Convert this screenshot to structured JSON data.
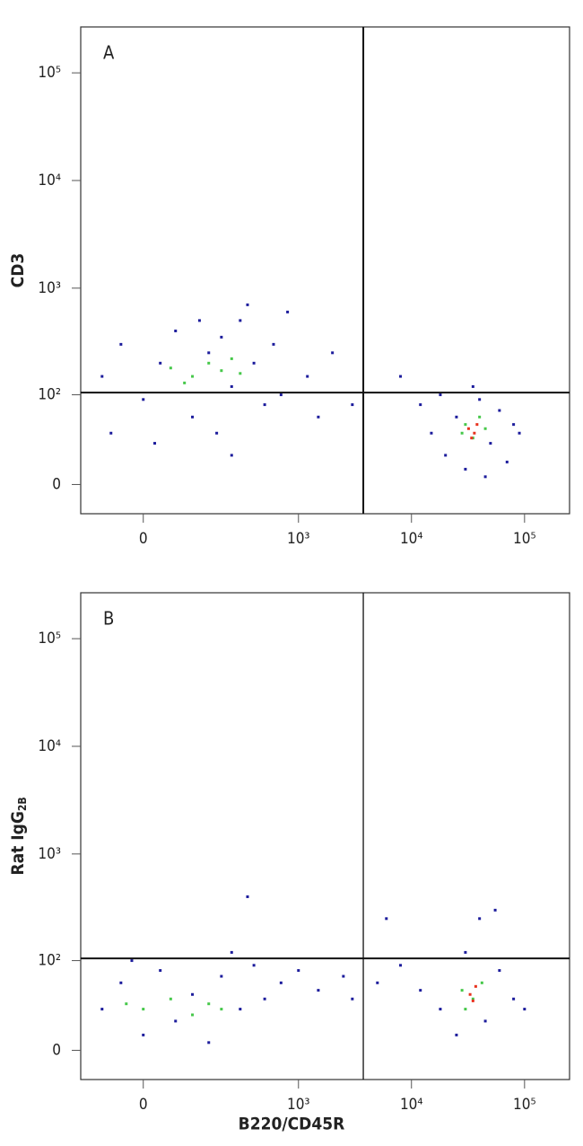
{
  "chart_data": [
    {
      "type": "scatter",
      "panel_label": "A",
      "ylabel": "CD3",
      "xscale": "biexponential",
      "yscale": "biexponential",
      "xlim": [
        -140,
        250000
      ],
      "ylim": [
        -20,
        267000
      ],
      "xticks": [
        0,
        {
          "value": 1000,
          "label": "10³"
        },
        {
          "value": 10000,
          "label": "10⁴"
        },
        {
          "value": 100000,
          "label": "10⁵"
        }
      ],
      "yticks": [
        0,
        {
          "value": 100,
          "label": "10²"
        },
        {
          "value": 1000,
          "label": "10³"
        },
        {
          "value": 10000,
          "label": "10⁴"
        },
        {
          "value": 100000,
          "label": "10⁵"
        }
      ],
      "quadrant": {
        "x": 3750,
        "y": 105
      },
      "series": [
        {
          "color": "#1c1c9c",
          "x": [
            -80,
            -40,
            0,
            30,
            60,
            100,
            150,
            200,
            250,
            300,
            400,
            500,
            600,
            800,
            1200,
            2000,
            3000,
            -60,
            20,
            120,
            180,
            350,
            700,
            1500,
            8000,
            12000,
            15000,
            20000,
            25000,
            30000,
            40000,
            50000,
            60000,
            70000,
            80000,
            18000,
            45000,
            35000,
            90000,
            250
          ],
          "values": [
            150,
            300,
            90,
            200,
            400,
            60,
            250,
            350,
            120,
            500,
            200,
            80,
            300,
            600,
            150,
            250,
            80,
            40,
            30,
            500,
            40,
            700,
            100,
            60,
            150,
            80,
            40,
            20,
            60,
            10,
            90,
            30,
            70,
            15,
            50,
            100,
            5,
            120,
            40,
            20
          ]
        },
        {
          "color": "#46c84a",
          "x": [
            50,
            100,
            150,
            200,
            250,
            80,
            300,
            30000,
            35000,
            40000,
            28000,
            45000
          ],
          "values": [
            180,
            150,
            200,
            170,
            220,
            130,
            160,
            50,
            35,
            60,
            40,
            45
          ]
        },
        {
          "color": "#e8321e",
          "x": [
            32000,
            36000,
            38000,
            34000
          ],
          "values": [
            45,
            40,
            50,
            35
          ]
        }
      ]
    },
    {
      "type": "scatter",
      "panel_label": "B",
      "ylabel": "Rat IgG",
      "ylabel_sub": "2B",
      "xlabel": "B220/CD45R",
      "xscale": "biexponential",
      "yscale": "biexponential",
      "xlim": [
        -140,
        250000
      ],
      "ylim": [
        -20,
        267000
      ],
      "xticks": [
        0,
        {
          "value": 1000,
          "label": "10³"
        },
        {
          "value": 10000,
          "label": "10⁴"
        },
        {
          "value": 100000,
          "label": "10⁵"
        }
      ],
      "yticks": [
        0,
        {
          "value": 100,
          "label": "10²"
        },
        {
          "value": 1000,
          "label": "10³"
        },
        {
          "value": 10000,
          "label": "10⁴"
        },
        {
          "value": 100000,
          "label": "10⁵"
        }
      ],
      "quadrant": {
        "x": 3750,
        "y": 105
      },
      "series": [
        {
          "color": "#1c1c9c",
          "x": [
            -80,
            -40,
            0,
            30,
            60,
            100,
            150,
            200,
            300,
            400,
            500,
            700,
            1000,
            1500,
            2500,
            3000,
            5000,
            8000,
            12000,
            18000,
            25000,
            30000,
            45000,
            60000,
            80000,
            100000,
            350,
            40000,
            55000,
            6000,
            -20,
            250
          ],
          "values": [
            30,
            60,
            10,
            80,
            20,
            45,
            5,
            70,
            30,
            90,
            40,
            60,
            80,
            50,
            70,
            40,
            60,
            90,
            50,
            30,
            10,
            120,
            20,
            80,
            40,
            30,
            400,
            250,
            300,
            250,
            100,
            120
          ]
        },
        {
          "color": "#46c84a",
          "x": [
            0,
            50,
            100,
            150,
            200,
            -30,
            28000,
            35000,
            42000,
            30000
          ],
          "values": [
            30,
            40,
            25,
            35,
            30,
            35,
            50,
            40,
            60,
            30
          ]
        },
        {
          "color": "#e8321e",
          "x": [
            33000,
            37000,
            35000
          ],
          "values": [
            45,
            55,
            38
          ]
        }
      ]
    }
  ]
}
